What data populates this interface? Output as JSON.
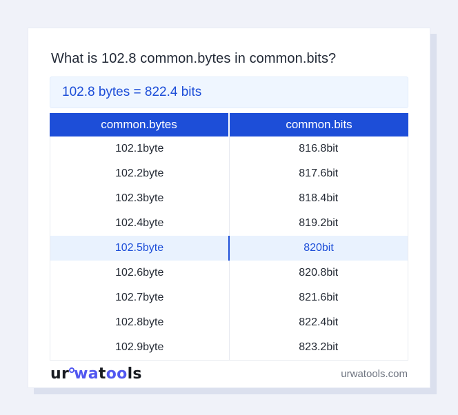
{
  "title": "What is 102.8 common.bytes in common.bits?",
  "result": "102.8 bytes = 822.4 bits",
  "table": {
    "headers": [
      "common.bytes",
      "common.bits"
    ],
    "rows": [
      {
        "bytes": "102.1byte",
        "bits": "816.8bit"
      },
      {
        "bytes": "102.2byte",
        "bits": "817.6bit"
      },
      {
        "bytes": "102.3byte",
        "bits": "818.4bit"
      },
      {
        "bytes": "102.4byte",
        "bits": "819.2bit"
      },
      {
        "bytes": "102.5byte",
        "bits": "820bit"
      },
      {
        "bytes": "102.6byte",
        "bits": "820.8bit"
      },
      {
        "bytes": "102.7byte",
        "bits": "821.6bit"
      },
      {
        "bytes": "102.8byte",
        "bits": "822.4bit"
      },
      {
        "bytes": "102.9byte",
        "bits": "823.2bit"
      }
    ],
    "highlighted_row_index": 4
  },
  "footer": {
    "logo": {
      "seg1": "ur",
      "seg2": "wa",
      "seg3": "t",
      "seg4": "oo",
      "seg5": "ls"
    },
    "site": "urwatools.com"
  },
  "colors": {
    "page_bg": "#f0f2f9",
    "card_bg": "#ffffff",
    "card_shadow": "#dbe0ee",
    "accent_blue": "#1d4ed8",
    "table_header_bg": "#1d4ed8",
    "highlight_row_bg": "#e9f2fe",
    "result_box_bg": "#eff6ff",
    "result_text": "#1d4ed8",
    "logo_blue": "#5157f0",
    "row_text": "#242a34",
    "site_text": "#6e7480"
  }
}
